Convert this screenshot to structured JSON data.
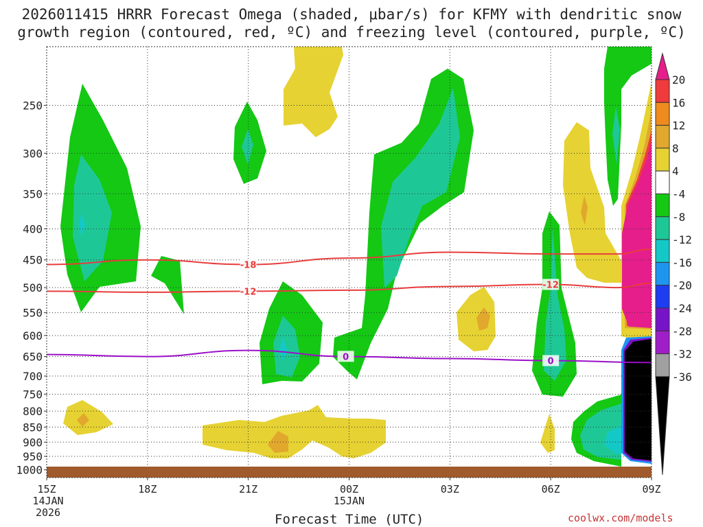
{
  "title_line1": "2026011415 HRRR Forecast Omega (shaded, μbar/s) for KFMY with dendritic snow",
  "title_line2": "growth region (contoured, red, ºC) and freezing level (contoured, purple, ºC)",
  "xlabel": "Forecast Time (UTC)",
  "credit": "coolwx.com/models",
  "chart_data": {
    "type": "time-height contour",
    "variable": "Omega (μbar/s)",
    "station": "KFMY",
    "x_ticks": [
      {
        "hour": 0,
        "label": "15Z",
        "sub1": "14JAN",
        "sub2": "2026"
      },
      {
        "hour": 3,
        "label": "18Z"
      },
      {
        "hour": 6,
        "label": "21Z"
      },
      {
        "hour": 9,
        "label": "00Z",
        "sub1": "15JAN"
      },
      {
        "hour": 12,
        "label": "03Z"
      },
      {
        "hour": 15,
        "label": "06Z"
      },
      {
        "hour": 18,
        "label": "09Z"
      }
    ],
    "y_levels_hpa": [
      250,
      300,
      350,
      400,
      450,
      500,
      550,
      600,
      650,
      700,
      750,
      800,
      850,
      900,
      950,
      1000
    ],
    "y_range_hpa": [
      200,
      1030
    ],
    "x_range_hours": [
      0,
      18
    ],
    "colorbar_labels": [
      "20",
      "16",
      "12",
      "8",
      "4",
      "-4",
      "-8",
      "-12",
      "-16",
      "-20",
      "-24",
      "-28",
      "-32",
      "-36"
    ],
    "colorbar_colors": [
      "#e61e8c",
      "#ef3b3b",
      "#ef8a1e",
      "#e1a82d",
      "#e6d232",
      "#ffffff",
      "#14c814",
      "#1ec896",
      "#14c8c8",
      "#1e96f0",
      "#1e3cf0",
      "#7814c8",
      "#a01ec8",
      "#a0a0a0",
      "#000000"
    ],
    "contours": [
      {
        "name": "dendritic -18C",
        "color": "#e83c3c",
        "label": "-18",
        "points": [
          [
            0,
            458
          ],
          [
            3,
            450
          ],
          [
            6,
            458
          ],
          [
            9,
            447
          ],
          [
            12,
            437
          ],
          [
            15,
            440
          ],
          [
            17,
            440
          ],
          [
            18,
            432
          ]
        ]
      },
      {
        "name": "dendritic -12C",
        "color": "#e83c3c",
        "label": "-12",
        "points": [
          [
            0,
            507
          ],
          [
            3,
            509
          ],
          [
            6,
            507
          ],
          [
            9,
            505
          ],
          [
            12,
            498
          ],
          [
            15,
            494
          ],
          [
            17,
            500
          ],
          [
            18,
            492
          ]
        ]
      },
      {
        "name": "freezing level 0C",
        "color": "#9b0fc8",
        "label": "0",
        "points": [
          [
            0,
            645
          ],
          [
            3,
            650
          ],
          [
            6,
            635
          ],
          [
            9,
            650
          ],
          [
            12,
            655
          ],
          [
            15,
            660
          ],
          [
            18,
            665
          ]
        ]
      }
    ]
  }
}
